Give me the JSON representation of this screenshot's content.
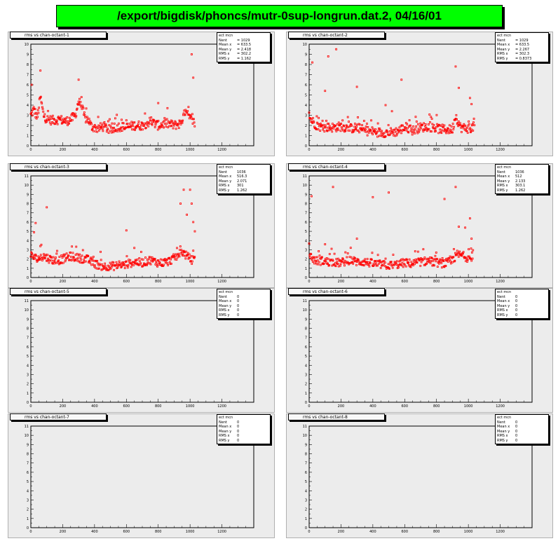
{
  "page": {
    "title": "/export/bigdisk/phoncs/mutr-0sup-longrun.dat.2, 04/16/01"
  },
  "chart_data": [
    {
      "type": "scatter",
      "title": "rms vs chan-octant-1",
      "xlim": [
        0,
        1400
      ],
      "ylim": [
        0,
        10
      ],
      "xticks": [
        "0",
        "200",
        "400",
        "600",
        "800",
        "1000",
        "1200"
      ],
      "yticks": [
        "0",
        "1",
        "2",
        "3",
        "4",
        "5",
        "6",
        "7",
        "8",
        "9",
        "10"
      ],
      "stats": [
        {
          "k": "ect mcn",
          "v": ""
        },
        {
          "k": "Nent",
          "v": "= 1029"
        },
        {
          "k": "Mean x",
          "v": "= 633.5"
        },
        {
          "k": "Mean y",
          "v": "= 2.418"
        },
        {
          "k": "RMS x",
          "v": "= 302.2"
        },
        {
          "k": "RMS y",
          "v": "= 1.162"
        }
      ],
      "markers": {
        "color": "#ff0000",
        "size": 2
      },
      "profile": [
        [
          0,
          3.0
        ],
        [
          20,
          3.6
        ],
        [
          40,
          2.7
        ],
        [
          60,
          4.8
        ],
        [
          80,
          3.0
        ],
        [
          100,
          2.6
        ],
        [
          140,
          2.5
        ],
        [
          180,
          2.6
        ],
        [
          220,
          2.4
        ],
        [
          250,
          2.6
        ],
        [
          280,
          3.0
        ],
        [
          300,
          4.4
        ],
        [
          320,
          3.8
        ],
        [
          340,
          2.7
        ],
        [
          360,
          2.6
        ],
        [
          380,
          1.9
        ],
        [
          420,
          1.7
        ],
        [
          460,
          1.9
        ],
        [
          500,
          1.5
        ],
        [
          550,
          1.9
        ],
        [
          600,
          1.8
        ],
        [
          650,
          2.0
        ],
        [
          700,
          2.0
        ],
        [
          750,
          2.4
        ],
        [
          800,
          2.0
        ],
        [
          850,
          2.2
        ],
        [
          900,
          2.0
        ],
        [
          940,
          2.2
        ],
        [
          970,
          3.3
        ],
        [
          1000,
          2.7
        ],
        [
          1030,
          2.2
        ]
      ],
      "outliers": [
        [
          5,
          6.0
        ],
        [
          60,
          7.4
        ],
        [
          300,
          6.5
        ],
        [
          1010,
          9.0
        ],
        [
          1020,
          6.7
        ],
        [
          530,
          2.7
        ],
        [
          800,
          4.2
        ]
      ]
    },
    {
      "type": "scatter",
      "title": "rms vs chan-octant-2",
      "xlim": [
        0,
        1400
      ],
      "ylim": [
        0,
        10
      ],
      "xticks": [
        "0",
        "200",
        "400",
        "600",
        "800",
        "1000",
        "1200"
      ],
      "yticks": [
        "0",
        "1",
        "2",
        "3",
        "4",
        "5",
        "6",
        "7",
        "8",
        "9",
        "10"
      ],
      "stats": [
        {
          "k": "ect mcn",
          "v": ""
        },
        {
          "k": "Nent",
          "v": "= 1029"
        },
        {
          "k": "Mean x",
          "v": "= 633.5"
        },
        {
          "k": "Mean y",
          "v": "= 2.267"
        },
        {
          "k": "RMS x",
          "v": "= 302.3"
        },
        {
          "k": "RMS y",
          "v": "= 0.8373"
        }
      ],
      "markers": {
        "color": "#ff0000",
        "size": 2
      },
      "profile": [
        [
          0,
          2.8
        ],
        [
          40,
          2.1
        ],
        [
          80,
          1.8
        ],
        [
          150,
          1.8
        ],
        [
          200,
          1.9
        ],
        [
          260,
          1.7
        ],
        [
          300,
          1.8
        ],
        [
          350,
          1.5
        ],
        [
          400,
          1.4
        ],
        [
          450,
          1.3
        ],
        [
          500,
          1.3
        ],
        [
          550,
          1.4
        ],
        [
          600,
          1.8
        ],
        [
          650,
          1.5
        ],
        [
          700,
          1.8
        ],
        [
          750,
          1.9
        ],
        [
          800,
          1.7
        ],
        [
          850,
          1.6
        ],
        [
          900,
          1.6
        ],
        [
          920,
          3.0
        ],
        [
          950,
          1.8
        ],
        [
          1000,
          1.7
        ],
        [
          1040,
          1.9
        ]
      ],
      "outliers": [
        [
          20,
          8.2
        ],
        [
          120,
          8.8
        ],
        [
          170,
          9.5
        ],
        [
          100,
          5.4
        ],
        [
          300,
          5.8
        ],
        [
          580,
          6.5
        ],
        [
          920,
          7.8
        ],
        [
          940,
          5.7
        ],
        [
          1010,
          4.7
        ],
        [
          1020,
          4.1
        ],
        [
          480,
          4.0
        ],
        [
          520,
          3.4
        ]
      ]
    },
    {
      "type": "scatter",
      "title": "rms vs chan-octant-3",
      "xlim": [
        0,
        1400
      ],
      "ylim": [
        0,
        11
      ],
      "xticks": [
        "0",
        "200",
        "400",
        "600",
        "800",
        "1000",
        "1200"
      ],
      "yticks": [
        "0",
        "1",
        "2",
        "3",
        "4",
        "5",
        "6",
        "7",
        "8",
        "9",
        "10",
        "11"
      ],
      "stats": [
        {
          "k": "ect mcn",
          "v": ""
        },
        {
          "k": "Nent",
          "v": "1036"
        },
        {
          "k": "Mean x",
          "v": "516.3"
        },
        {
          "k": "Mean y",
          "v": "2.071"
        },
        {
          "k": "RMS x",
          "v": "301"
        },
        {
          "k": "RMS y",
          "v": "1.262"
        }
      ],
      "markers": {
        "color": "#ff0000",
        "size": 2
      },
      "profile": [
        [
          0,
          2.4
        ],
        [
          40,
          2.0
        ],
        [
          80,
          2.3
        ],
        [
          120,
          2.0
        ],
        [
          160,
          1.8
        ],
        [
          200,
          2.0
        ],
        [
          250,
          2.3
        ],
        [
          300,
          2.1
        ],
        [
          350,
          2.0
        ],
        [
          400,
          1.5
        ],
        [
          450,
          1.2
        ],
        [
          500,
          1.2
        ],
        [
          550,
          1.3
        ],
        [
          600,
          1.4
        ],
        [
          650,
          1.7
        ],
        [
          700,
          1.6
        ],
        [
          750,
          1.9
        ],
        [
          800,
          1.6
        ],
        [
          850,
          1.6
        ],
        [
          900,
          2.1
        ],
        [
          950,
          2.8
        ],
        [
          1000,
          2.0
        ],
        [
          1030,
          1.8
        ]
      ],
      "outliers": [
        [
          20,
          4.9
        ],
        [
          60,
          3.4
        ],
        [
          100,
          7.6
        ],
        [
          30,
          5.9
        ],
        [
          600,
          5.1
        ],
        [
          650,
          3.2
        ],
        [
          940,
          8.0
        ],
        [
          960,
          9.5
        ],
        [
          1000,
          9.5
        ],
        [
          1010,
          8.0
        ],
        [
          1020,
          6.0
        ],
        [
          1030,
          5.0
        ],
        [
          980,
          6.8
        ]
      ]
    },
    {
      "type": "scatter",
      "title": "rms vs chan-octant-4",
      "xlim": [
        0,
        1400
      ],
      "ylim": [
        0,
        11
      ],
      "xticks": [
        "0",
        "200",
        "400",
        "600",
        "800",
        "1000",
        "1200"
      ],
      "yticks": [
        "0",
        "1",
        "2",
        "3",
        "4",
        "5",
        "6",
        "7",
        "8",
        "9",
        "10",
        "11"
      ],
      "stats": [
        {
          "k": "ect mcn",
          "v": ""
        },
        {
          "k": "Nent",
          "v": "1036"
        },
        {
          "k": "Mean x",
          "v": "512"
        },
        {
          "k": "Mean y",
          "v": "2.133"
        },
        {
          "k": "RMS x",
          "v": "303.1"
        },
        {
          "k": "RMS y",
          "v": "1.262"
        }
      ],
      "markers": {
        "color": "#ff0000",
        "size": 2
      },
      "profile": [
        [
          0,
          2.4
        ],
        [
          40,
          1.8
        ],
        [
          80,
          1.8
        ],
        [
          120,
          1.7
        ],
        [
          160,
          1.6
        ],
        [
          200,
          1.6
        ],
        [
          260,
          1.9
        ],
        [
          300,
          1.7
        ],
        [
          350,
          1.7
        ],
        [
          400,
          1.5
        ],
        [
          450,
          1.4
        ],
        [
          500,
          1.3
        ],
        [
          550,
          1.4
        ],
        [
          600,
          1.6
        ],
        [
          650,
          1.5
        ],
        [
          700,
          1.7
        ],
        [
          750,
          1.8
        ],
        [
          800,
          1.6
        ],
        [
          850,
          1.5
        ],
        [
          900,
          1.8
        ],
        [
          930,
          2.5
        ],
        [
          960,
          2.4
        ],
        [
          1000,
          2.1
        ],
        [
          1030,
          2.0
        ]
      ],
      "outliers": [
        [
          15,
          8.8
        ],
        [
          150,
          9.8
        ],
        [
          400,
          8.7
        ],
        [
          500,
          9.2
        ],
        [
          850,
          8.5
        ],
        [
          920,
          9.8
        ],
        [
          940,
          5.5
        ],
        [
          980,
          5.4
        ],
        [
          1010,
          6.4
        ],
        [
          1020,
          4.2
        ],
        [
          300,
          4.2
        ],
        [
          100,
          3.6
        ]
      ]
    },
    {
      "type": "scatter",
      "title": "rms vs chan-octant-5",
      "xlim": [
        0,
        1400
      ],
      "ylim": [
        0,
        11
      ],
      "xticks": [
        "0",
        "200",
        "400",
        "600",
        "800",
        "1000",
        "1200"
      ],
      "yticks": [
        "0",
        "1",
        "2",
        "3",
        "4",
        "5",
        "6",
        "7",
        "8",
        "9",
        "10",
        "11"
      ],
      "stats": [
        {
          "k": "ect mcn",
          "v": ""
        },
        {
          "k": "Nent",
          "v": "0"
        },
        {
          "k": "Mean x",
          "v": "0"
        },
        {
          "k": "Mean y",
          "v": "0"
        },
        {
          "k": "RMS x",
          "v": "0"
        },
        {
          "k": "RMS y",
          "v": "0"
        }
      ],
      "markers": {
        "color": "#ff0000",
        "size": 2
      },
      "profile": [],
      "outliers": []
    },
    {
      "type": "scatter",
      "title": "rms vs chan-octant-6",
      "xlim": [
        0,
        1400
      ],
      "ylim": [
        0,
        11
      ],
      "xticks": [
        "0",
        "200",
        "400",
        "600",
        "800",
        "1000",
        "1200"
      ],
      "yticks": [
        "0",
        "1",
        "2",
        "3",
        "4",
        "5",
        "6",
        "7",
        "8",
        "9",
        "10",
        "11"
      ],
      "stats": [
        {
          "k": "ect mcn",
          "v": ""
        },
        {
          "k": "Nent",
          "v": "0"
        },
        {
          "k": "Mean x",
          "v": "0"
        },
        {
          "k": "Mean y",
          "v": "0"
        },
        {
          "k": "RMS x",
          "v": "0"
        },
        {
          "k": "RMS y",
          "v": "0"
        }
      ],
      "markers": {
        "color": "#ff0000",
        "size": 2
      },
      "profile": [],
      "outliers": []
    },
    {
      "type": "scatter",
      "title": "rms vs chan-octant-7",
      "xlim": [
        0,
        1400
      ],
      "ylim": [
        0,
        11
      ],
      "xticks": [
        "0",
        "200",
        "400",
        "600",
        "800",
        "1000",
        "1200"
      ],
      "yticks": [
        "0",
        "1",
        "2",
        "3",
        "4",
        "5",
        "6",
        "7",
        "8",
        "9",
        "10",
        "11"
      ],
      "stats": [
        {
          "k": "ect mcn",
          "v": ""
        },
        {
          "k": "Nent",
          "v": "0"
        },
        {
          "k": "Mean x",
          "v": "0"
        },
        {
          "k": "Mean y",
          "v": "0"
        },
        {
          "k": "RMS x",
          "v": "0"
        },
        {
          "k": "RMS y",
          "v": "0"
        }
      ],
      "markers": {
        "color": "#ff0000",
        "size": 2
      },
      "profile": [],
      "outliers": []
    },
    {
      "type": "scatter",
      "title": "rms vs chan-octant-8",
      "xlim": [
        0,
        1400
      ],
      "ylim": [
        0,
        11
      ],
      "xticks": [
        "0",
        "200",
        "400",
        "600",
        "800",
        "1000",
        "1200"
      ],
      "yticks": [
        "0",
        "1",
        "2",
        "3",
        "4",
        "5",
        "6",
        "7",
        "8",
        "9",
        "10",
        "11"
      ],
      "stats": [
        {
          "k": "ect mcn",
          "v": ""
        },
        {
          "k": "Nent",
          "v": "0"
        },
        {
          "k": "Mean x",
          "v": "0"
        },
        {
          "k": "Mean y",
          "v": "0"
        },
        {
          "k": "RMS x",
          "v": "0"
        },
        {
          "k": "RMS y",
          "v": "0"
        }
      ],
      "markers": {
        "color": "#ff0000",
        "size": 2
      },
      "profile": [],
      "outliers": []
    }
  ]
}
